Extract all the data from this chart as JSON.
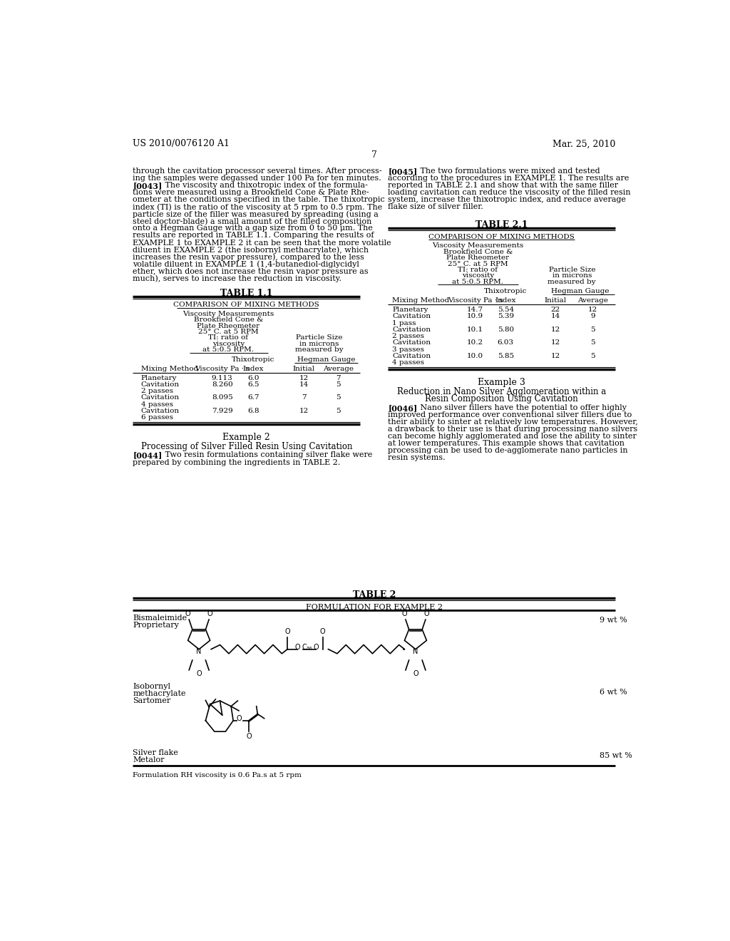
{
  "background_color": "#ffffff",
  "header_left": "US 2010/0076120 A1",
  "header_right": "Mar. 25, 2010",
  "page_number": "7",
  "table11_title": "TABLE 1.1",
  "table21_title": "TABLE 2.1",
  "table2_title": "TABLE 2",
  "table2_subtitle": "FORMULATION FOR EXAMPLE 2",
  "table2_footnote": "Formulation RH viscosity is 0.6 Pa.s at 5 rpm"
}
